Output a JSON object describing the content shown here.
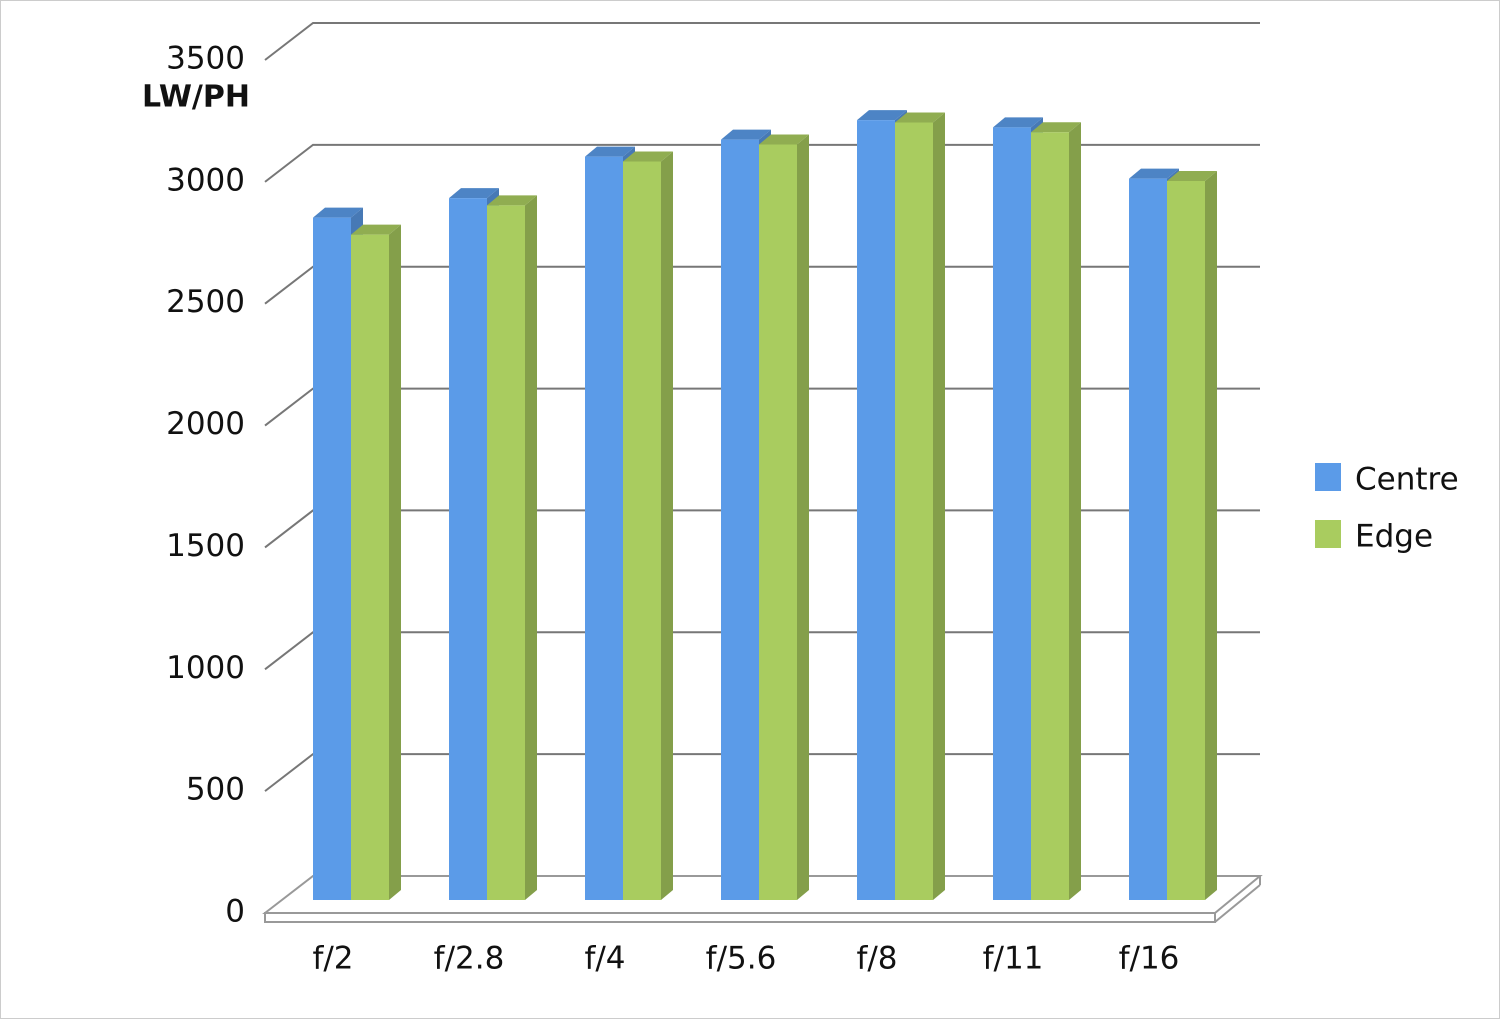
{
  "chart_data": {
    "type": "bar3d",
    "y_label": "LW/PH",
    "categories": [
      "f/2",
      "f/2.8",
      "f/4",
      "f/5.6",
      "f/8",
      "f/11",
      "f/16"
    ],
    "series": [
      {
        "name": "Centre",
        "color": "#5b9be8",
        "values": [
          2800,
          2880,
          3050,
          3120,
          3200,
          3170,
          2960
        ]
      },
      {
        "name": "Edge",
        "color": "#a9cc5f",
        "values": [
          2730,
          2850,
          3030,
          3100,
          3190,
          3150,
          2950
        ]
      }
    ],
    "ylim": [
      0,
      3500
    ],
    "yticks": [
      0,
      500,
      1000,
      1500,
      2000,
      2500,
      3000,
      3500
    ],
    "grid": true
  }
}
